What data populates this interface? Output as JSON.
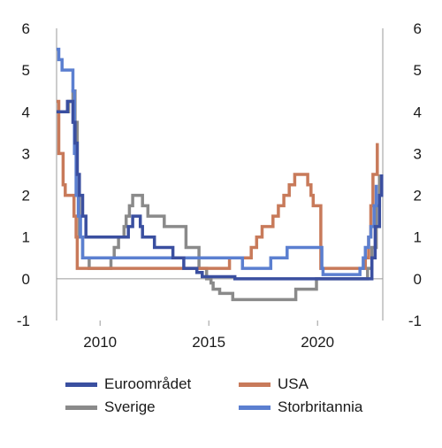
{
  "chart_data": {
    "type": "line",
    "title": "",
    "xlabel": "",
    "ylabel": "",
    "xlim": [
      2008.0,
      2023.0
    ],
    "ylim": [
      -1,
      6
    ],
    "x_ticks": [
      2010,
      2015,
      2020
    ],
    "y_ticks": [
      6,
      5,
      4,
      3,
      2,
      1,
      0,
      -1
    ],
    "y_axis_both_sides": true,
    "grid": false,
    "zero_line": true,
    "legend_position": "bottom",
    "series": [
      {
        "name": "Euroområdet",
        "color": "#3a4fa0",
        "points": [
          [
            2008.0,
            4.0
          ],
          [
            2008.5,
            4.25
          ],
          [
            2008.75,
            3.75
          ],
          [
            2008.85,
            3.25
          ],
          [
            2008.95,
            2.5
          ],
          [
            2009.05,
            2.0
          ],
          [
            2009.2,
            1.5
          ],
          [
            2009.35,
            1.0
          ],
          [
            2011.3,
            1.25
          ],
          [
            2011.5,
            1.5
          ],
          [
            2011.85,
            1.25
          ],
          [
            2011.95,
            1.0
          ],
          [
            2012.5,
            0.75
          ],
          [
            2013.35,
            0.5
          ],
          [
            2013.85,
            0.25
          ],
          [
            2014.45,
            0.15
          ],
          [
            2014.7,
            0.05
          ],
          [
            2016.2,
            0.0
          ],
          [
            2022.5,
            0.5
          ],
          [
            2022.65,
            1.25
          ],
          [
            2022.85,
            2.0
          ],
          [
            2022.95,
            2.5
          ]
        ]
      },
      {
        "name": "USA",
        "color": "#c87a5a",
        "points": [
          [
            2008.0,
            4.25
          ],
          [
            2008.1,
            3.0
          ],
          [
            2008.3,
            2.25
          ],
          [
            2008.4,
            2.0
          ],
          [
            2008.8,
            1.5
          ],
          [
            2008.9,
            1.0
          ],
          [
            2008.95,
            0.25
          ],
          [
            2015.95,
            0.5
          ],
          [
            2016.95,
            0.75
          ],
          [
            2017.2,
            1.0
          ],
          [
            2017.45,
            1.25
          ],
          [
            2017.95,
            1.5
          ],
          [
            2018.2,
            1.75
          ],
          [
            2018.45,
            2.0
          ],
          [
            2018.7,
            2.25
          ],
          [
            2018.95,
            2.5
          ],
          [
            2019.55,
            2.25
          ],
          [
            2019.7,
            2.0
          ],
          [
            2019.8,
            1.75
          ],
          [
            2020.15,
            0.25
          ],
          [
            2022.2,
            0.5
          ],
          [
            2022.35,
            1.0
          ],
          [
            2022.45,
            1.75
          ],
          [
            2022.55,
            2.5
          ],
          [
            2022.75,
            3.25
          ]
        ]
      },
      {
        "name": "Sverige",
        "color": "#8a8a8a",
        "points": [
          [
            2008.0,
            4.0
          ],
          [
            2008.55,
            4.25
          ],
          [
            2008.75,
            4.5
          ],
          [
            2008.85,
            3.75
          ],
          [
            2008.95,
            2.0
          ],
          [
            2009.05,
            1.0
          ],
          [
            2009.2,
            0.5
          ],
          [
            2009.5,
            0.25
          ],
          [
            2010.5,
            0.5
          ],
          [
            2010.65,
            0.75
          ],
          [
            2010.85,
            1.0
          ],
          [
            2011.1,
            1.25
          ],
          [
            2011.2,
            1.5
          ],
          [
            2011.35,
            1.75
          ],
          [
            2011.5,
            2.0
          ],
          [
            2011.95,
            1.75
          ],
          [
            2012.2,
            1.5
          ],
          [
            2012.95,
            1.25
          ],
          [
            2013.95,
            0.75
          ],
          [
            2014.55,
            0.25
          ],
          [
            2014.9,
            0.0
          ],
          [
            2015.1,
            -0.1
          ],
          [
            2015.2,
            -0.25
          ],
          [
            2015.5,
            -0.35
          ],
          [
            2016.1,
            -0.5
          ],
          [
            2019.0,
            -0.25
          ],
          [
            2019.95,
            0.0
          ],
          [
            2022.3,
            0.25
          ],
          [
            2022.5,
            0.75
          ],
          [
            2022.7,
            1.75
          ],
          [
            2022.85,
            2.5
          ]
        ]
      },
      {
        "name": "Storbritannia",
        "color": "#5b7fd0",
        "points": [
          [
            2008.0,
            5.5
          ],
          [
            2008.1,
            5.25
          ],
          [
            2008.25,
            5.0
          ],
          [
            2008.75,
            4.5
          ],
          [
            2008.82,
            3.0
          ],
          [
            2008.9,
            2.0
          ],
          [
            2009.0,
            1.5
          ],
          [
            2009.1,
            1.0
          ],
          [
            2009.2,
            0.5
          ],
          [
            2016.55,
            0.25
          ],
          [
            2017.85,
            0.5
          ],
          [
            2018.6,
            0.75
          ],
          [
            2020.2,
            0.25
          ],
          [
            2020.25,
            0.1
          ],
          [
            2021.95,
            0.25
          ],
          [
            2022.1,
            0.5
          ],
          [
            2022.2,
            0.75
          ],
          [
            2022.35,
            1.0
          ],
          [
            2022.45,
            1.25
          ],
          [
            2022.6,
            1.75
          ],
          [
            2022.7,
            2.25
          ]
        ]
      }
    ]
  },
  "legend": {
    "items": [
      {
        "label": "Euroområdet",
        "color": "#3a4fa0"
      },
      {
        "label": "USA",
        "color": "#c87a5a"
      },
      {
        "label": "Sverige",
        "color": "#8a8a8a"
      },
      {
        "label": "Storbritannia",
        "color": "#5b7fd0"
      }
    ]
  }
}
